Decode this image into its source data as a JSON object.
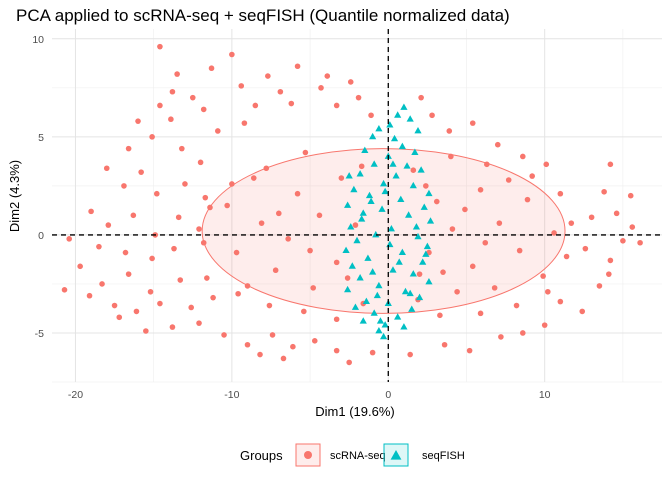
{
  "chart_data": {
    "type": "scatter",
    "title": "PCA applied to scRNA-seq + seqFISH (Quantile normalized data)",
    "xlabel": "Dim1 (19.6%)",
    "ylabel": "Dim2 (4.3%)",
    "xlim": [
      -21.5,
      17.5
    ],
    "ylim": [
      -7.5,
      10.5
    ],
    "x_ticks": [
      -20,
      -10,
      0,
      10
    ],
    "y_ticks": [
      -5,
      0,
      5,
      10
    ],
    "grid": true,
    "reference_lines": {
      "x": 0,
      "y": 0,
      "style": "dashed"
    },
    "legend": {
      "title": "Groups",
      "position": "bottom"
    },
    "series": [
      {
        "name": "scRNA-seq",
        "marker": "circle",
        "color": "#F8766D",
        "ellipse": {
          "center": [
            -0.3,
            0.2
          ],
          "semi_axis_x": 11.6,
          "semi_axis_y": 4.2
        },
        "points": [
          [
            -14.6,
            9.6
          ],
          [
            -10.0,
            9.2
          ],
          [
            -11.3,
            8.5
          ],
          [
            -13.5,
            8.2
          ],
          [
            -9.4,
            7.6
          ],
          [
            -7.7,
            8.1
          ],
          [
            -5.8,
            8.6
          ],
          [
            -3.9,
            8.1
          ],
          [
            -4.3,
            7.5
          ],
          [
            -2.4,
            7.8
          ],
          [
            -6.9,
            7.3
          ],
          [
            -12.5,
            7.0
          ],
          [
            -13.8,
            7.3
          ],
          [
            -14.6,
            6.6
          ],
          [
            -11.8,
            6.4
          ],
          [
            -8.5,
            6.6
          ],
          [
            -6.2,
            6.7
          ],
          [
            -3.3,
            6.6
          ],
          [
            -1.9,
            7.0
          ],
          [
            2.1,
            7.0
          ],
          [
            2.8,
            6.1
          ],
          [
            -16.0,
            5.8
          ],
          [
            -13.9,
            5.9
          ],
          [
            -15.1,
            5.0
          ],
          [
            -10.9,
            5.3
          ],
          [
            -9.2,
            5.7
          ],
          [
            -1.1,
            6.1
          ],
          [
            3.9,
            5.3
          ],
          [
            5.4,
            5.7
          ],
          [
            7.0,
            4.6
          ],
          [
            8.6,
            4.0
          ],
          [
            10.1,
            3.6
          ],
          [
            -16.6,
            4.4
          ],
          [
            -13.2,
            4.4
          ],
          [
            -12.0,
            3.7
          ],
          [
            14.2,
            3.6
          ],
          [
            -18.0,
            3.4
          ],
          [
            -16.9,
            2.5
          ],
          [
            -15.8,
            3.2
          ],
          [
            -14.8,
            2.1
          ],
          [
            -13.0,
            2.6
          ],
          [
            -11.7,
            1.9
          ],
          [
            13.8,
            2.2
          ],
          [
            15.5,
            2.0
          ],
          [
            -19.0,
            1.2
          ],
          [
            -17.9,
            0.5
          ],
          [
            -16.3,
            1.0
          ],
          [
            -14.9,
            0.0
          ],
          [
            -13.4,
            0.9
          ],
          [
            -12.1,
            0.3
          ],
          [
            13.0,
            0.9
          ],
          [
            14.6,
            1.1
          ],
          [
            15.6,
            0.4
          ],
          [
            16.1,
            -0.4
          ],
          [
            -20.4,
            -0.2
          ],
          [
            -18.5,
            -0.6
          ],
          [
            -16.8,
            -0.9
          ],
          [
            -15.1,
            -1.2
          ],
          [
            -13.7,
            -0.7
          ],
          [
            12.6,
            -0.7
          ],
          [
            14.2,
            -1.3
          ],
          [
            15.0,
            -0.3
          ],
          [
            -19.7,
            -1.6
          ],
          [
            -18.3,
            -2.5
          ],
          [
            -16.6,
            -2.0
          ],
          [
            -15.2,
            -2.9
          ],
          [
            -13.3,
            -2.3
          ],
          [
            13.5,
            -2.6
          ],
          [
            14.1,
            -2.0
          ],
          [
            -20.7,
            -2.8
          ],
          [
            -19.1,
            -3.1
          ],
          [
            -17.5,
            -3.6
          ],
          [
            -16.1,
            -3.9
          ],
          [
            -14.6,
            -3.5
          ],
          [
            -12.6,
            -3.7
          ],
          [
            -11.2,
            -3.2
          ],
          [
            11.0,
            -3.4
          ],
          [
            12.4,
            -3.9
          ],
          [
            -17.2,
            -4.2
          ],
          [
            -15.5,
            -4.9
          ],
          [
            -13.8,
            -4.7
          ],
          [
            -12.1,
            -4.5
          ],
          [
            -10.5,
            -5.1
          ],
          [
            -9.0,
            -5.6
          ],
          [
            -7.4,
            -5.1
          ],
          [
            -6.1,
            -5.7
          ],
          [
            -4.7,
            -5.4
          ],
          [
            -3.3,
            -5.9
          ],
          [
            -8.2,
            -6.1
          ],
          [
            -6.7,
            -6.3
          ],
          [
            -2.5,
            -6.5
          ],
          [
            -1.0,
            -6.0
          ],
          [
            1.4,
            -6.1
          ],
          [
            3.6,
            -5.6
          ],
          [
            5.2,
            -5.9
          ],
          [
            7.2,
            -5.2
          ],
          [
            8.6,
            -5.0
          ],
          [
            10.0,
            -4.6
          ],
          [
            -11.6,
            -2.2
          ],
          [
            -9.6,
            -3.0
          ],
          [
            -7.6,
            -3.6
          ],
          [
            -5.4,
            -3.9
          ],
          [
            -3.3,
            -4.3
          ],
          [
            3.3,
            -4.1
          ],
          [
            5.9,
            -4.0
          ],
          [
            8.2,
            -3.6
          ],
          [
            10.2,
            -2.9
          ],
          [
            11.4,
            -1.1
          ],
          [
            11.7,
            0.6
          ],
          [
            11.0,
            2.1
          ],
          [
            9.2,
            3.0
          ],
          [
            6.3,
            3.6
          ],
          [
            4.0,
            4.0
          ],
          [
            -5.3,
            4.2
          ],
          [
            -7.8,
            3.4
          ],
          [
            -10.0,
            2.6
          ],
          [
            -11.4,
            1.4
          ],
          [
            -11.8,
            -0.4
          ],
          [
            -10.3,
            1.5
          ],
          [
            -8.1,
            0.6
          ],
          [
            -9.7,
            -0.9
          ],
          [
            -7.2,
            -1.8
          ],
          [
            -5.8,
            2.1
          ],
          [
            -6.4,
            -0.2
          ],
          [
            -4.4,
            1.0
          ],
          [
            -3.3,
            -1.4
          ],
          [
            -4.8,
            -2.7
          ],
          [
            -3.0,
            2.9
          ],
          [
            -2.1,
            0.5
          ],
          [
            -2.6,
            -2.2
          ],
          [
            3.1,
            1.7
          ],
          [
            2.6,
            -0.9
          ],
          [
            4.1,
            0.3
          ],
          [
            5.4,
            -1.6
          ],
          [
            5.9,
            2.3
          ],
          [
            7.1,
            0.6
          ],
          [
            8.4,
            -0.8
          ],
          [
            8.9,
            1.8
          ],
          [
            9.9,
            -2.1
          ],
          [
            10.6,
            0.1
          ],
          [
            6.8,
            -2.7
          ],
          [
            4.4,
            -2.9
          ],
          [
            7.7,
            2.8
          ],
          [
            -8.6,
            2.9
          ],
          [
            -9.0,
            -2.6
          ],
          [
            -1.7,
            3.5
          ],
          [
            1.6,
            3.3
          ],
          [
            1.9,
            -3.3
          ],
          [
            -1.6,
            -3.5
          ],
          [
            2.4,
            2.5
          ],
          [
            2.0,
            -2.0
          ],
          [
            -7.0,
            1.1
          ],
          [
            -5.0,
            -0.8
          ],
          [
            4.9,
            1.3
          ],
          [
            6.2,
            -0.4
          ],
          [
            3.5,
            -1.9
          ]
        ]
      },
      {
        "name": "seqFISH",
        "marker": "triangle",
        "color": "#00BFC4",
        "points": [
          [
            1.0,
            6.5
          ],
          [
            1.4,
            5.9
          ],
          [
            0.6,
            6.1
          ],
          [
            0.1,
            5.6
          ],
          [
            -0.6,
            5.4
          ],
          [
            -1.0,
            5.0
          ],
          [
            1.9,
            5.3
          ],
          [
            0.4,
            4.9
          ],
          [
            0.9,
            4.5
          ],
          [
            -1.5,
            4.3
          ],
          [
            1.7,
            4.2
          ],
          [
            0.0,
            4.0
          ],
          [
            -0.9,
            3.6
          ],
          [
            1.2,
            3.5
          ],
          [
            2.1,
            3.3
          ],
          [
            -1.8,
            3.1
          ],
          [
            0.5,
            3.0
          ],
          [
            -0.3,
            2.6
          ],
          [
            1.6,
            2.5
          ],
          [
            -2.2,
            2.3
          ],
          [
            2.6,
            2.1
          ],
          [
            -1.2,
            2.0
          ],
          [
            0.8,
            1.8
          ],
          [
            -2.6,
            1.5
          ],
          [
            2.3,
            1.4
          ],
          [
            -0.4,
            1.3
          ],
          [
            1.3,
            1.0
          ],
          [
            -1.7,
            0.8
          ],
          [
            2.7,
            0.7
          ],
          [
            -2.4,
            0.4
          ],
          [
            0.2,
            0.3
          ],
          [
            -0.8,
            0.0
          ],
          [
            1.9,
            -0.1
          ],
          [
            -2.0,
            -0.3
          ],
          [
            2.5,
            -0.6
          ],
          [
            -2.7,
            -0.8
          ],
          [
            0.9,
            -0.9
          ],
          [
            -1.3,
            -1.2
          ],
          [
            2.2,
            -1.4
          ],
          [
            -2.3,
            -1.6
          ],
          [
            0.3,
            -1.8
          ],
          [
            1.6,
            -2.0
          ],
          [
            -1.8,
            -2.2
          ],
          [
            2.6,
            -2.4
          ],
          [
            -0.6,
            -2.6
          ],
          [
            -2.6,
            -2.8
          ],
          [
            1.1,
            -2.9
          ],
          [
            2.0,
            -3.2
          ],
          [
            -1.4,
            -3.4
          ],
          [
            0.0,
            -3.5
          ],
          [
            -2.1,
            -3.7
          ],
          [
            1.5,
            -3.8
          ],
          [
            -0.9,
            -4.0
          ],
          [
            0.6,
            -4.2
          ],
          [
            -1.6,
            -4.4
          ],
          [
            -0.2,
            -4.6
          ],
          [
            1.0,
            -4.7
          ],
          [
            -0.6,
            -4.9
          ],
          [
            -0.3,
            -5.2
          ],
          [
            -0.5,
            -4.4
          ],
          [
            -1.1,
            1.7
          ],
          [
            0.7,
            -1.4
          ],
          [
            -0.2,
            2.2
          ],
          [
            1.4,
            -3.0
          ],
          [
            -1.0,
            -1.9
          ],
          [
            0.3,
            3.6
          ],
          [
            -0.7,
            -3.1
          ],
          [
            1.8,
            0.4
          ],
          [
            -1.6,
            1.1
          ],
          [
            0.1,
            -0.5
          ],
          [
            -2.5,
            3.0
          ],
          [
            2.4,
            -1.0
          ]
        ]
      }
    ]
  }
}
